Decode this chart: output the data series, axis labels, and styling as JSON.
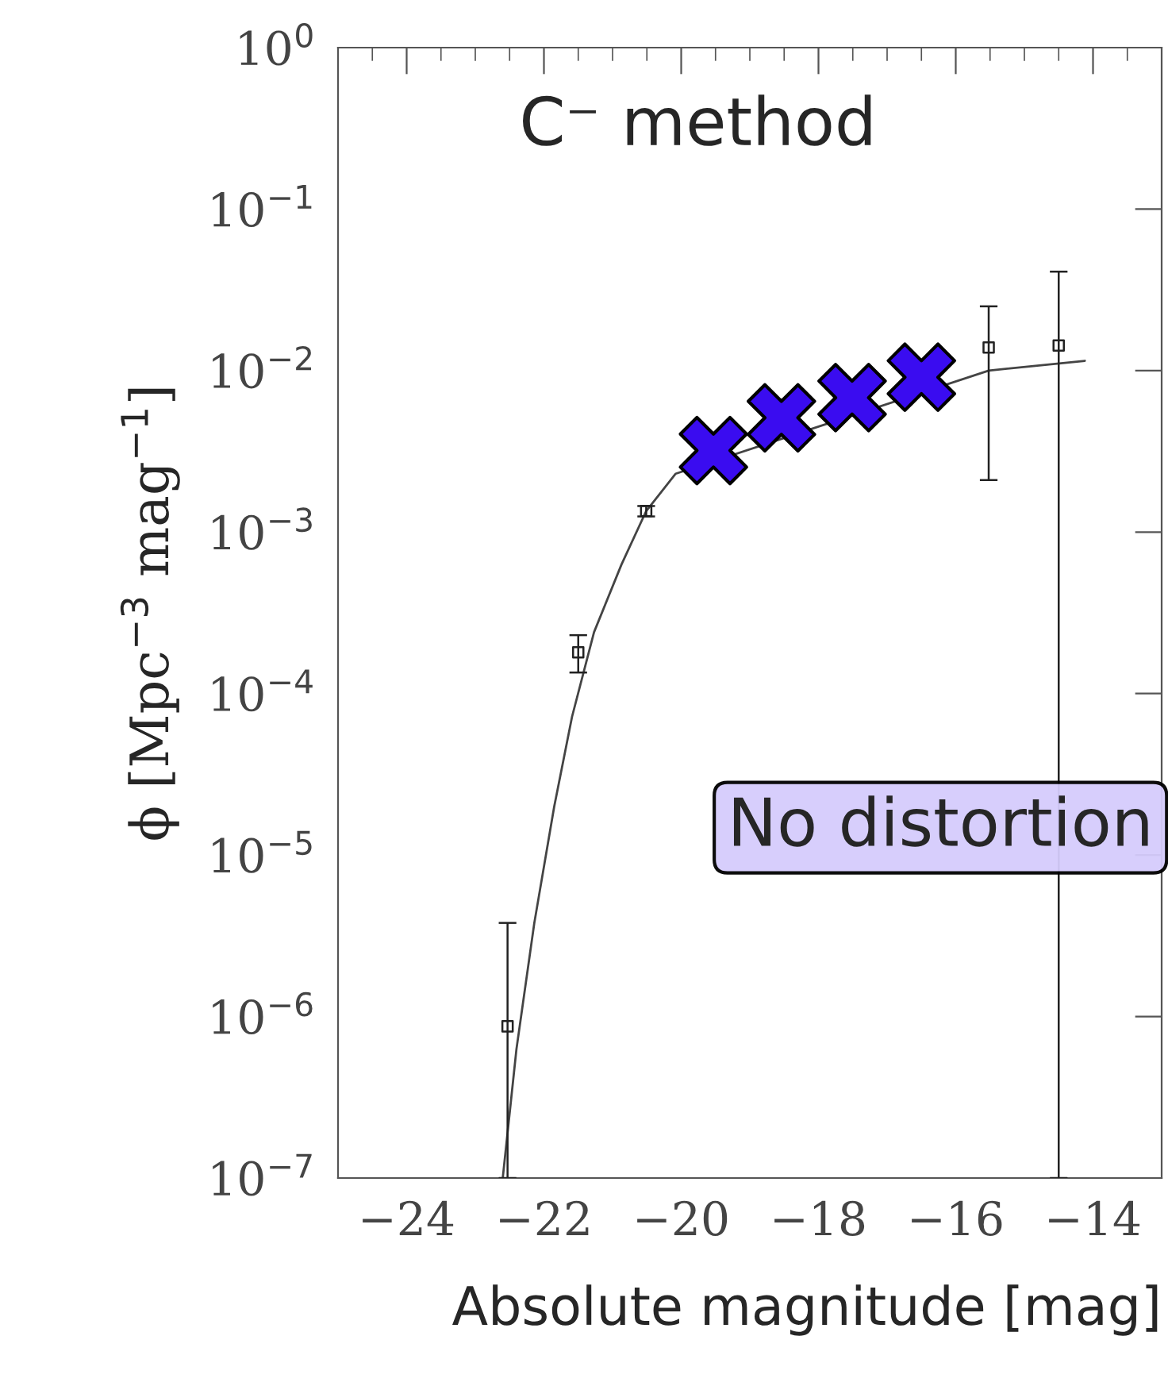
{
  "chart_data": {
    "type": "scatter",
    "xlabel": "Absolute magnitude [mag]",
    "ylabel": "ϕ [Mpc$^{−3}$ mag$^{−1}$]",
    "log": "y",
    "xlim": [
      -25,
      -13
    ],
    "xticks": [
      {
        "value": -24,
        "label": "−24"
      },
      {
        "value": -22,
        "label": "−22"
      },
      {
        "value": -20,
        "label": "−20"
      },
      {
        "value": -18,
        "label": "−18"
      },
      {
        "value": -16,
        "label": "−16"
      },
      {
        "value": -14,
        "label": "−14"
      }
    ],
    "ylim": [
      1e-07,
      1
    ],
    "yticks": [
      {
        "value": 1e-07,
        "label": "10$^{−7}$"
      },
      {
        "value": 1e-06,
        "label": "10$^{−6}$"
      },
      {
        "value": 1e-05,
        "label": "10$^{−5}$"
      },
      {
        "value": 0.0001,
        "label": "10$^{−4}$"
      },
      {
        "value": 0.001,
        "label": "10$^{−3}$"
      },
      {
        "value": 0.01,
        "label": "10$^{−2}$"
      },
      {
        "value": 0.1,
        "label": "10$^{−1}$"
      },
      {
        "value": 1,
        "label": "10$^{0}$"
      }
    ],
    "grid": false,
    "series": [
      {
        "type": "line",
        "color": "#444444",
        "marker": "none",
        "x": [
          -22.6,
          -22.4,
          -22.14,
          -21.85,
          -21.59,
          -21.27,
          -20.87,
          -20.51,
          -20.08,
          -15.52,
          -14.12
        ],
        "values": [
          1e-07,
          6.3e-07,
          3.8e-06,
          2e-05,
          7.2e-05,
          0.00024,
          0.00063,
          0.00135,
          0.0023,
          0.01,
          0.0115
        ]
      },
      {
        "color": "#222222",
        "marker": "square",
        "x": [
          -22.53,
          -21.5,
          -20.51,
          -15.52,
          -14.5
        ],
        "values": [
          8.7e-07,
          0.00018,
          0.00135,
          0.0139,
          0.0143
        ],
        "errors": [
          [
            1e-07,
            3.8e-06
          ],
          [
            0.000135,
            0.00023
          ],
          [
            0.00125,
            0.00145
          ],
          [
            0.0021,
            0.025
          ],
          [
            1e-07,
            0.041
          ]
        ]
      },
      {
        "color": "#3a0cf0",
        "marker": "cross",
        "x": [
          -19.53,
          -18.54,
          -17.51,
          -16.5
        ],
        "values": [
          0.0032,
          0.0051,
          0.0068,
          0.0091
        ]
      }
    ],
    "annotations": [
      "C⁻ method",
      "No distortion"
    ]
  }
}
